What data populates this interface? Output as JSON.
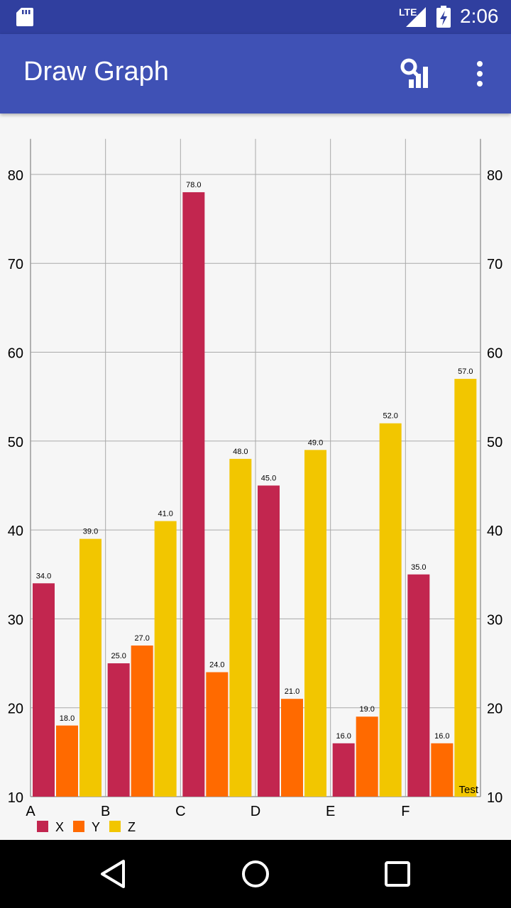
{
  "status_bar": {
    "network": "LTE",
    "time": "2:06",
    "icons": [
      "sd-card-icon",
      "lte-signal-icon",
      "battery-charging-icon"
    ]
  },
  "app_bar": {
    "title": "Draw Graph",
    "actions": [
      "chart-icon",
      "overflow-menu-icon"
    ]
  },
  "nav_bar": {
    "buttons": [
      "back-icon",
      "home-icon",
      "recents-icon"
    ]
  },
  "colors": {
    "status_bar": "#303f9f",
    "app_bar": "#3f51b5",
    "series_x": "#c2264f",
    "series_y": "#ff6a00",
    "series_z": "#f2c600"
  },
  "chart_data": {
    "type": "bar",
    "categories": [
      "A",
      "B",
      "C",
      "D",
      "E",
      "F"
    ],
    "series": [
      {
        "name": "X",
        "color": "#c2264f",
        "values": [
          34.0,
          25.0,
          78.0,
          45.0,
          16.0,
          35.0
        ]
      },
      {
        "name": "Y",
        "color": "#ff6a00",
        "values": [
          18.0,
          27.0,
          24.0,
          21.0,
          19.0,
          16.0
        ]
      },
      {
        "name": "Z",
        "color": "#f2c600",
        "values": [
          39.0,
          41.0,
          48.0,
          49.0,
          52.0,
          57.0
        ]
      }
    ],
    "ylim": [
      10,
      84
    ],
    "yticks": [
      10,
      20,
      30,
      40,
      50,
      60,
      70,
      80
    ],
    "value_label_decimals": 1,
    "grid": true,
    "legend": "bottom-left",
    "description": "Test",
    "axes": "left and right"
  }
}
